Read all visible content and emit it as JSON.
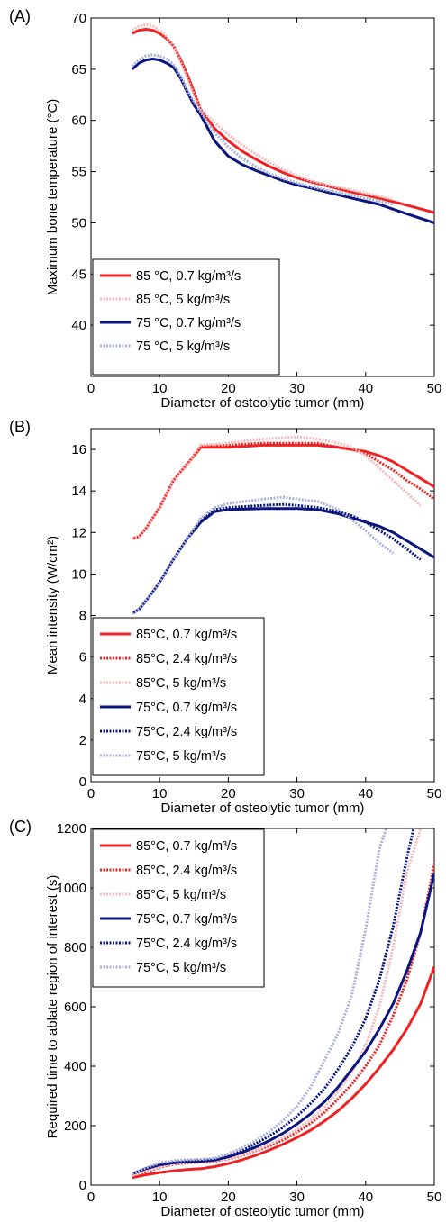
{
  "chart_data": [
    {
      "type": "line",
      "panel_label": "(A)",
      "xlabel": "Diameter of osteolytic tumor (mm)",
      "ylabel": "Maximum bone temperature (°C)",
      "xlim": [
        0,
        50
      ],
      "ylim": [
        35,
        70
      ],
      "xticks": [
        "0",
        "10",
        "20",
        "30",
        "40",
        "50"
      ],
      "yticks": [
        "40",
        "45",
        "50",
        "55",
        "60",
        "65",
        "70"
      ],
      "legend_position": "lower-left",
      "series": [
        {
          "name": "85 °C, 0.7 kg/m³/s",
          "color": "#ee2222",
          "style": "solid",
          "x": [
            6,
            7,
            8,
            9,
            10,
            11,
            12,
            13,
            14,
            15,
            16,
            18,
            20,
            22,
            24,
            26,
            28,
            30,
            32,
            35,
            38,
            40,
            42,
            45,
            50
          ],
          "y": [
            68.5,
            68.8,
            68.9,
            68.8,
            68.5,
            68.0,
            67.3,
            66.0,
            64.5,
            62.8,
            61.0,
            59.2,
            58.0,
            57.0,
            56.2,
            55.5,
            54.9,
            54.4,
            54.0,
            53.5,
            53.0,
            52.7,
            52.4,
            51.9,
            51.0
          ]
        },
        {
          "name": "85 °C, 5 kg/m³/s",
          "color": "#f5b8bb",
          "style": "dotted",
          "x": [
            6,
            7,
            8,
            9,
            10,
            11,
            12,
            13,
            14,
            15,
            16,
            18,
            20,
            22,
            24,
            26,
            28,
            30,
            32,
            35,
            38,
            40,
            42,
            44
          ],
          "y": [
            68.8,
            69.2,
            69.4,
            69.2,
            68.8,
            68.2,
            67.3,
            65.8,
            64.2,
            62.5,
            61.0,
            59.8,
            58.6,
            57.6,
            56.7,
            55.9,
            55.2,
            54.6,
            54.1,
            53.6,
            53.2,
            52.9,
            52.6,
            52.3
          ]
        },
        {
          "name": "75 °C, 0.7 kg/m³/s",
          "color": "#0a1580",
          "style": "solid",
          "x": [
            6,
            7,
            8,
            9,
            10,
            11,
            12,
            13,
            14,
            15,
            16,
            18,
            20,
            22,
            24,
            26,
            28,
            30,
            32,
            35,
            38,
            40,
            42,
            45,
            50
          ],
          "y": [
            65.0,
            65.6,
            65.9,
            66.0,
            65.9,
            65.6,
            65.2,
            64.2,
            62.8,
            61.5,
            60.5,
            58.0,
            56.5,
            55.7,
            55.1,
            54.6,
            54.1,
            53.7,
            53.4,
            52.9,
            52.4,
            52.1,
            51.8,
            51.1,
            50.0
          ]
        },
        {
          "name": "75 °C, 5 kg/m³/s",
          "color": "#a9b1d8",
          "style": "dotted",
          "x": [
            6,
            7,
            8,
            9,
            10,
            11,
            12,
            13,
            14,
            15,
            16,
            18,
            20,
            22,
            24,
            26,
            28,
            30,
            32,
            35,
            38,
            40,
            42,
            44
          ],
          "y": [
            65.3,
            65.9,
            66.3,
            66.4,
            66.3,
            66.0,
            65.5,
            64.4,
            63.0,
            61.8,
            60.8,
            58.8,
            57.4,
            56.3,
            55.5,
            54.8,
            54.3,
            53.9,
            53.5,
            53.1,
            52.7,
            52.4,
            52.1,
            51.8
          ]
        }
      ]
    },
    {
      "type": "line",
      "panel_label": "(B)",
      "xlabel": "Diameter of osteolytic tumor (mm)",
      "ylabel": "Mean intensity (W/cm²)",
      "xlim": [
        0,
        50
      ],
      "ylim": [
        0,
        17
      ],
      "xticks": [
        "0",
        "10",
        "20",
        "30",
        "40",
        "50"
      ],
      "yticks": [
        "0",
        "2",
        "4",
        "6",
        "8",
        "10",
        "12",
        "14",
        "16"
      ],
      "legend_position": "lower-left",
      "series": [
        {
          "name": "85°C, 0.7 kg/m³/s",
          "color": "#ee2222",
          "style": "solid",
          "x": [
            6,
            7,
            8,
            10,
            12,
            14,
            16,
            20,
            25,
            30,
            33,
            36,
            38,
            40,
            42,
            44,
            46,
            48,
            50
          ],
          "y": [
            11.7,
            11.8,
            12.2,
            13.2,
            14.5,
            15.3,
            16.1,
            16.1,
            16.2,
            16.2,
            16.2,
            16.1,
            16.0,
            15.9,
            15.7,
            15.4,
            15.0,
            14.6,
            14.2
          ]
        },
        {
          "name": "85°C, 2.4 kg/m³/s",
          "color": "#ee2222",
          "style": "dotted",
          "x": [
            6,
            7,
            8,
            10,
            12,
            14,
            16,
            20,
            25,
            30,
            33,
            36,
            38,
            40,
            42,
            44,
            46,
            48,
            50
          ],
          "y": [
            11.7,
            11.8,
            12.2,
            13.2,
            14.5,
            15.3,
            16.15,
            16.2,
            16.3,
            16.3,
            16.3,
            16.1,
            16.0,
            15.8,
            15.4,
            15.0,
            14.5,
            14.1,
            13.6
          ]
        },
        {
          "name": "85°C, 5 kg/m³/s",
          "color": "#f5b8bb",
          "style": "dotted",
          "x": [
            6,
            7,
            8,
            10,
            12,
            14,
            16,
            20,
            25,
            30,
            33,
            36,
            38,
            40,
            42,
            44,
            46,
            48
          ],
          "y": [
            11.7,
            11.8,
            12.2,
            13.2,
            14.5,
            15.3,
            16.2,
            16.3,
            16.5,
            16.6,
            16.5,
            16.3,
            16.1,
            15.7,
            15.1,
            14.5,
            13.9,
            13.3
          ]
        },
        {
          "name": "75°C, 0.7 kg/m³/s",
          "color": "#0a1580",
          "style": "solid",
          "x": [
            6,
            7,
            8,
            10,
            12,
            14,
            16,
            18,
            20,
            25,
            30,
            33,
            36,
            38,
            40,
            42,
            44,
            46,
            48,
            50
          ],
          "y": [
            8.1,
            8.3,
            8.7,
            9.6,
            10.7,
            11.7,
            12.5,
            13.0,
            13.1,
            13.15,
            13.15,
            13.1,
            12.9,
            12.7,
            12.5,
            12.3,
            12.0,
            11.6,
            11.2,
            10.8
          ]
        },
        {
          "name": "75°C, 2.4 kg/m³/s",
          "color": "#0a1580",
          "style": "dotted",
          "x": [
            6,
            7,
            8,
            10,
            12,
            14,
            16,
            18,
            20,
            25,
            28,
            30,
            33,
            36,
            38,
            40,
            42,
            44,
            46,
            48
          ],
          "y": [
            8.1,
            8.3,
            8.7,
            9.6,
            10.7,
            11.7,
            12.6,
            13.1,
            13.2,
            13.3,
            13.35,
            13.3,
            13.2,
            13.0,
            12.8,
            12.5,
            12.1,
            11.7,
            11.2,
            10.7
          ]
        },
        {
          "name": "75°C, 5 kg/m³/s",
          "color": "#a9b1d8",
          "style": "dotted",
          "x": [
            6,
            7,
            8,
            10,
            12,
            14,
            16,
            18,
            20,
            25,
            28,
            30,
            33,
            36,
            38,
            40,
            42,
            44
          ],
          "y": [
            8.1,
            8.3,
            8.7,
            9.6,
            10.7,
            11.7,
            12.7,
            13.2,
            13.4,
            13.6,
            13.7,
            13.6,
            13.5,
            13.1,
            12.6,
            12.1,
            11.5,
            11.0
          ]
        }
      ]
    },
    {
      "type": "line",
      "panel_label": "(C)",
      "xlabel": "Diameter of osteolytic tumor (mm)",
      "ylabel": "Required time to ablate region of interest (s)",
      "xlim": [
        0,
        50
      ],
      "ylim": [
        0,
        1200
      ],
      "xticks": [
        "0",
        "10",
        "20",
        "30",
        "40",
        "50"
      ],
      "yticks": [
        "0",
        "200",
        "400",
        "600",
        "800",
        "1000",
        "1200"
      ],
      "legend_position": "top-left",
      "series": [
        {
          "name": "85°C, 0.7 kg/m³/s",
          "color": "#ee2222",
          "style": "solid",
          "x": [
            6,
            8,
            10,
            12,
            14,
            16,
            18,
            20,
            22,
            24,
            26,
            28,
            30,
            32,
            34,
            36,
            38,
            40,
            42,
            44,
            46,
            48,
            50
          ],
          "y": [
            25,
            35,
            42,
            48,
            52,
            55,
            62,
            72,
            85,
            100,
            118,
            138,
            160,
            185,
            215,
            250,
            292,
            340,
            395,
            455,
            525,
            610,
            735
          ]
        },
        {
          "name": "85°C, 2.4 kg/m³/s",
          "color": "#ee2222",
          "style": "dotted",
          "x": [
            6,
            8,
            10,
            12,
            14,
            16,
            18,
            20,
            22,
            24,
            26,
            28,
            30,
            32,
            34,
            36,
            38,
            40,
            42,
            44,
            46,
            48,
            50
          ],
          "y": [
            30,
            45,
            60,
            70,
            75,
            78,
            80,
            88,
            100,
            115,
            132,
            152,
            178,
            208,
            245,
            290,
            340,
            400,
            470,
            570,
            690,
            850,
            1080
          ]
        },
        {
          "name": "85°C, 5 kg/m³/s",
          "color": "#f5b8bb",
          "style": "dotted",
          "x": [
            6,
            8,
            10,
            12,
            14,
            16,
            18,
            20,
            22,
            24,
            26,
            28,
            30,
            32,
            34,
            36,
            38,
            40,
            42,
            44,
            46,
            48
          ],
          "y": [
            32,
            48,
            62,
            72,
            78,
            80,
            82,
            90,
            102,
            118,
            138,
            160,
            188,
            222,
            262,
            315,
            380,
            470,
            600,
            800,
            1050,
            1200
          ]
        },
        {
          "name": "75°C, 0.7 kg/m³/s",
          "color": "#0a1580",
          "style": "solid",
          "x": [
            6,
            8,
            10,
            12,
            14,
            16,
            18,
            20,
            22,
            24,
            26,
            28,
            30,
            32,
            34,
            36,
            38,
            40,
            42,
            44,
            46,
            48,
            50
          ],
          "y": [
            38,
            55,
            68,
            75,
            78,
            80,
            84,
            95,
            110,
            128,
            150,
            175,
            205,
            240,
            280,
            330,
            390,
            450,
            525,
            610,
            720,
            850,
            1050
          ]
        },
        {
          "name": "75°C, 2.4 kg/m³/s",
          "color": "#0a1580",
          "style": "dotted",
          "x": [
            6,
            8,
            10,
            12,
            14,
            16,
            18,
            20,
            22,
            24,
            26,
            28,
            30,
            32,
            34,
            36,
            38,
            40,
            42,
            44,
            46,
            47
          ],
          "y": [
            38,
            56,
            70,
            78,
            82,
            84,
            88,
            100,
            118,
            140,
            165,
            195,
            232,
            275,
            325,
            390,
            465,
            560,
            690,
            870,
            1100,
            1200
          ]
        },
        {
          "name": "75°C, 5 kg/m³/s",
          "color": "#a9b1d8",
          "style": "dotted",
          "x": [
            6,
            8,
            10,
            12,
            14,
            16,
            18,
            20,
            22,
            24,
            26,
            28,
            30,
            32,
            34,
            36,
            38,
            40,
            42,
            43
          ],
          "y": [
            38,
            58,
            75,
            82,
            85,
            86,
            90,
            105,
            125,
            150,
            180,
            218,
            265,
            330,
            420,
            510,
            640,
            860,
            1130,
            1200
          ]
        }
      ]
    }
  ]
}
